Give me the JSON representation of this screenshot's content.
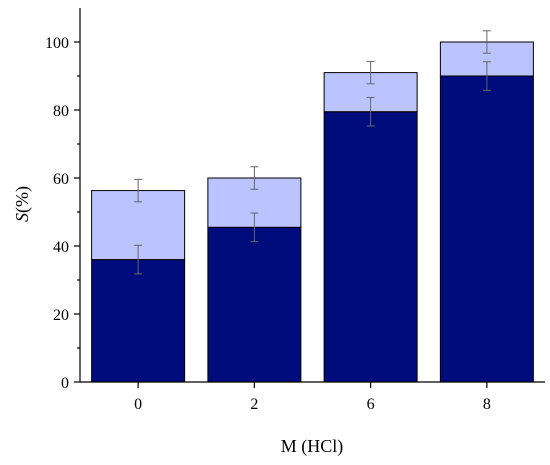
{
  "chart_data": {
    "type": "bar",
    "stacked": true,
    "categories": [
      "0",
      "2",
      "6",
      "8"
    ],
    "series": [
      {
        "values": [
          36,
          45.5,
          79.5,
          90
        ],
        "errors": [
          4.2,
          4.2,
          4.2,
          4.2
        ],
        "color": "#000c7b"
      },
      {
        "values": [
          20.3,
          14.5,
          11.5,
          10
        ],
        "errors": [
          3.3,
          3.3,
          3.3,
          3.3
        ],
        "color": "#bcc4ff"
      }
    ],
    "xlabel": "M (HCl)",
    "ylabel_italic": "S",
    "ylabel_rest": "(%)",
    "ylim": [
      0,
      110
    ],
    "yticks": [
      0,
      20,
      40,
      60,
      80,
      100
    ],
    "grid": false
  }
}
